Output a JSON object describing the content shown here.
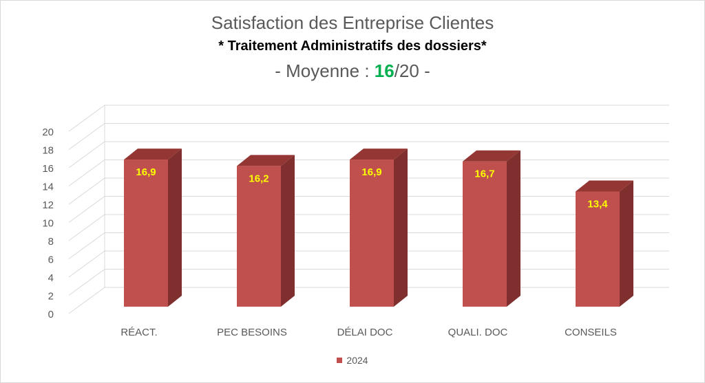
{
  "title": {
    "line1": "Satisfaction des Entreprise Clientes",
    "line2": "* Traitement Administratifs des dossiers*",
    "line3_prefix": "- Moyenne : ",
    "line3_highlight": "16",
    "line3_suffix": "/20 -"
  },
  "colors": {
    "bar_front": "#c0504d",
    "bar_side": "#7f2f2e",
    "bar_top": "#943634",
    "data_label": "#ffff00",
    "highlight": "#00b050",
    "grid": "#d9d9d9",
    "axis_text": "#595959"
  },
  "chart_data": {
    "type": "bar",
    "style": "3d-column",
    "categories": [
      "RÉACT.",
      "PEC BESOINS",
      "DÉLAI DOC",
      "QUALI. DOC",
      "CONSEILS"
    ],
    "series": [
      {
        "name": "2024",
        "values": [
          16.9,
          16.2,
          16.9,
          16.7,
          13.4
        ]
      }
    ],
    "data_labels": [
      "16,9",
      "16,2",
      "16,9",
      "16,7",
      "13,4"
    ],
    "yticks": [
      0,
      2,
      4,
      6,
      8,
      10,
      12,
      14,
      16,
      18,
      20
    ],
    "ylim": [
      0,
      20
    ],
    "grid": true,
    "legend_position": "bottom"
  }
}
